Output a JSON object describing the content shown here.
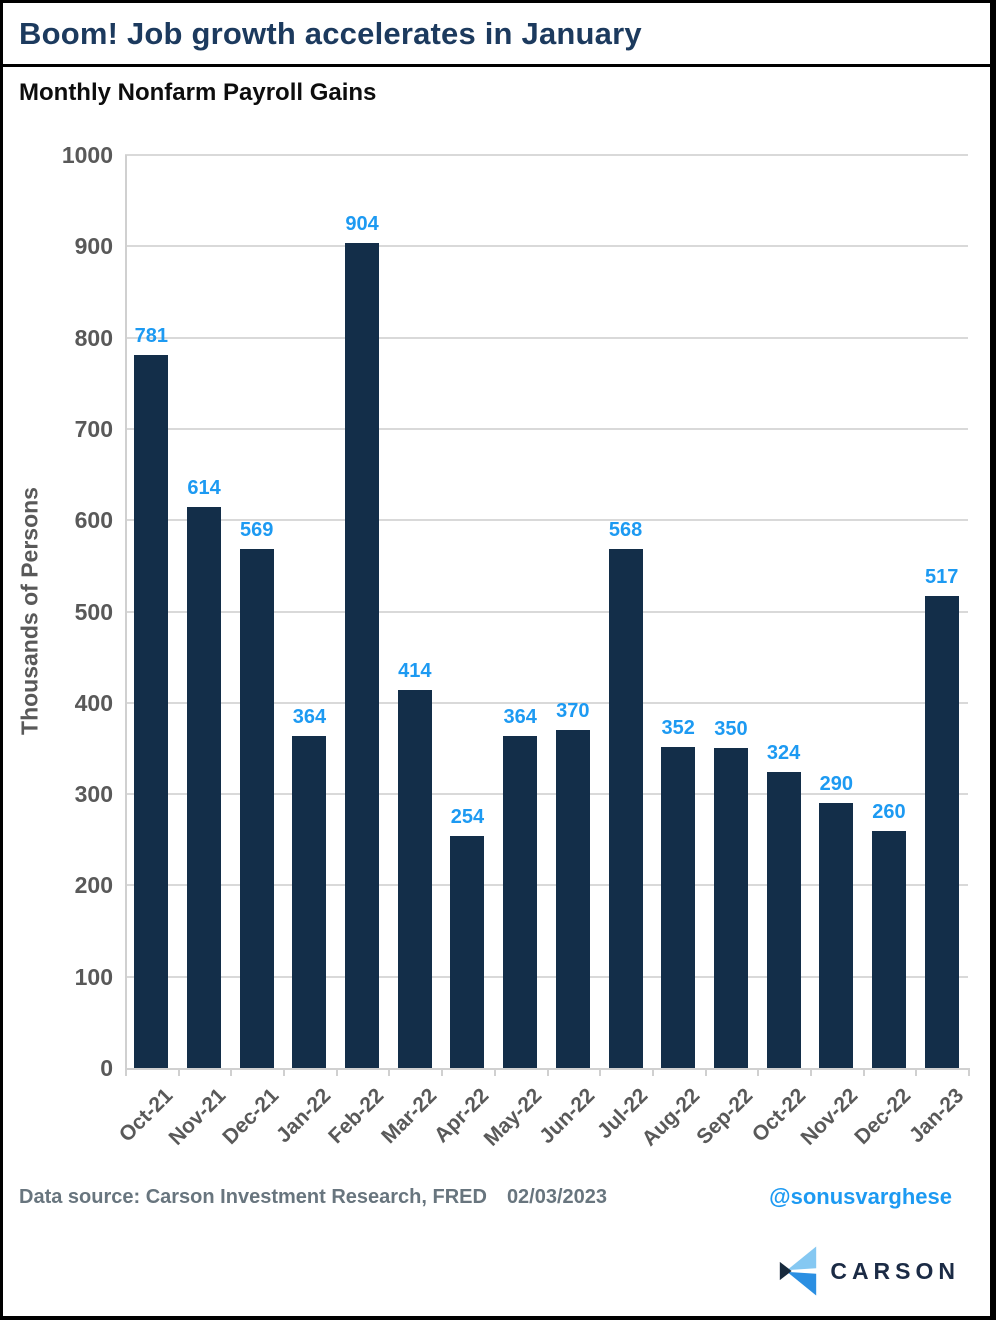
{
  "header": {
    "title": "Boom! Job growth accelerates in January",
    "subtitle": "Monthly Nonfarm Payroll Gains"
  },
  "chart_data": {
    "type": "bar",
    "title": "Monthly Nonfarm Payroll Gains",
    "categories": [
      "Oct-21",
      "Nov-21",
      "Dec-21",
      "Jan-22",
      "Feb-22",
      "Mar-22",
      "Apr-22",
      "May-22",
      "Jun-22",
      "Jul-22",
      "Aug-22",
      "Sep-22",
      "Oct-22",
      "Nov-22",
      "Dec-22",
      "Jan-23"
    ],
    "values": [
      781,
      614,
      569,
      364,
      904,
      414,
      254,
      364,
      370,
      568,
      352,
      350,
      324,
      290,
      260,
      517
    ],
    "xlabel": "",
    "ylabel": "Thousands of Persons",
    "ylim": [
      0,
      1000
    ],
    "yticks": [
      0,
      100,
      200,
      300,
      400,
      500,
      600,
      700,
      800,
      900,
      1000
    ],
    "grid": "horizontal",
    "legend": "none",
    "value_labels": "above-bars",
    "bar_color": "#132e49",
    "value_label_color": "#1d9af2",
    "axis_text_color": "#595959",
    "gridline_color": "#d9d9d9",
    "axis_line_color": "#d0d0d0"
  },
  "footer": {
    "source_label": "Data source: Carson Investment Research, FRED",
    "date": "02/03/2023",
    "handle": "@sonusvarghese",
    "handle_color": "#1d9af2"
  },
  "logo": {
    "brand": "CARSON",
    "mark_color_light": "#85c8f2",
    "mark_color_mid": "#2b8fe2",
    "mark_color_dark": "#182a3d",
    "text_color": "#1b2b45"
  }
}
